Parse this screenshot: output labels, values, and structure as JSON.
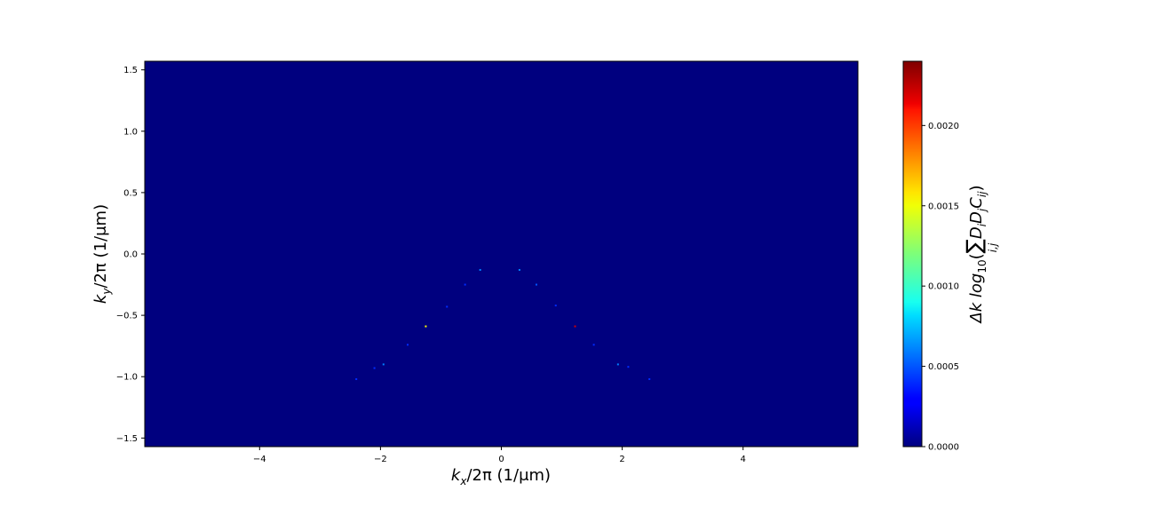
{
  "chart_data": {
    "type": "heatmap",
    "title": "",
    "xlabel": {
      "base": "k",
      "sub": "x",
      "rest": "/2π (1/μm)"
    },
    "ylabel": {
      "base": "k",
      "sub": "y",
      "rest": "/2π (1/μm)"
    },
    "xlim": [
      -5.9,
      5.9
    ],
    "ylim": [
      -1.57,
      1.57
    ],
    "xticks": [
      -4,
      -2,
      0,
      2,
      4
    ],
    "xtick_labels": [
      "−4",
      "−2",
      "0",
      "2",
      "4"
    ],
    "yticks": [
      1.5,
      1.0,
      0.5,
      0.0,
      -0.5,
      -1.0,
      -1.5
    ],
    "ytick_labels": [
      "1.5",
      "1.0",
      "0.5",
      "0.0",
      "−0.5",
      "−1.0",
      "−1.5"
    ],
    "background_value": 0.0,
    "colorbar": {
      "colormap": "jet",
      "range": [
        0,
        0.0024
      ],
      "ticks": [
        0,
        0.0005,
        0.001,
        0.0015,
        0.002
      ],
      "tick_labels": [
        "0.0000",
        "0.0005",
        "0.0010",
        "0.0015",
        "0.0020"
      ],
      "label": {
        "prefix": "Δk log",
        "log_sub": "10",
        "sum_sub": "i,j",
        "body": "D",
        "i": "i",
        "j": "j",
        "c": "C",
        "ij": "ij"
      }
    },
    "highlight_points": [
      {
        "x": -0.35,
        "y": -0.13,
        "v": 0.0006
      },
      {
        "x": 0.3,
        "y": -0.13,
        "v": 0.0006
      },
      {
        "x": -0.6,
        "y": -0.25,
        "v": 0.0004
      },
      {
        "x": 0.58,
        "y": -0.25,
        "v": 0.0005
      },
      {
        "x": -0.9,
        "y": -0.43,
        "v": 0.0004
      },
      {
        "x": 0.9,
        "y": -0.42,
        "v": 0.0004
      },
      {
        "x": -1.25,
        "y": -0.59,
        "v": 0.0015
      },
      {
        "x": 1.22,
        "y": -0.59,
        "v": 0.0022
      },
      {
        "x": -1.55,
        "y": -0.74,
        "v": 0.0004
      },
      {
        "x": 1.53,
        "y": -0.74,
        "v": 0.0004
      },
      {
        "x": -1.95,
        "y": -0.9,
        "v": 0.0006
      },
      {
        "x": 1.93,
        "y": -0.9,
        "v": 0.0006
      },
      {
        "x": -2.1,
        "y": -0.93,
        "v": 0.0004
      },
      {
        "x": 2.1,
        "y": -0.92,
        "v": 0.0004
      },
      {
        "x": -2.4,
        "y": -1.02,
        "v": 0.0004
      },
      {
        "x": 2.45,
        "y": -1.02,
        "v": 0.0004
      }
    ],
    "colors": {
      "background": "#00007f",
      "frame": "#000000"
    }
  }
}
